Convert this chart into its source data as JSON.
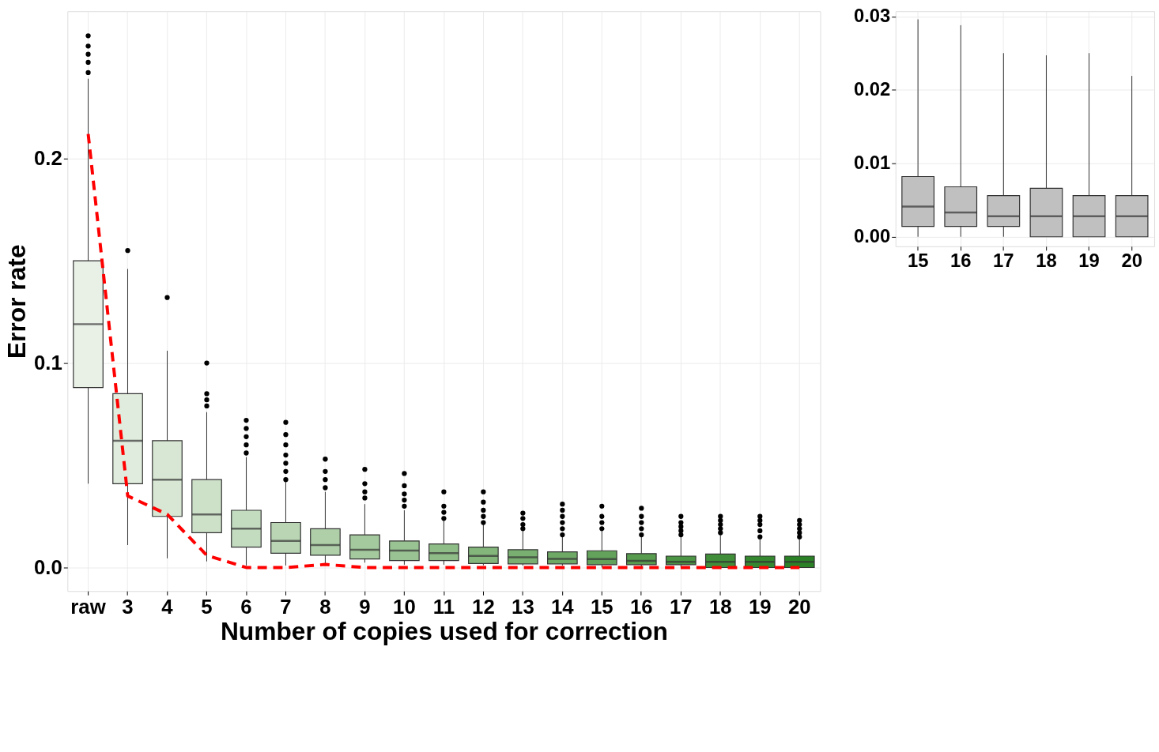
{
  "chart_data": [
    {
      "type": "box",
      "xlabel": "Number of copies used for correction",
      "ylabel": "Error rate",
      "categories": [
        "raw",
        "3",
        "4",
        "5",
        "6",
        "7",
        "8",
        "9",
        "10",
        "11",
        "12",
        "13",
        "14",
        "15",
        "16",
        "17",
        "18",
        "19",
        "20"
      ],
      "colors": [
        "#e9f1e7",
        "#e0ecdd",
        "#d7e7d3",
        "#cde1c9",
        "#c3dbbf",
        "#b9d5b4",
        "#afcfa9",
        "#a4c99e",
        "#9ac393",
        "#8fbd88",
        "#84b67c",
        "#79b071",
        "#6ea966",
        "#62a25a",
        "#579c4f",
        "#4b9544",
        "#408e39",
        "#35882f",
        "#2b8226"
      ],
      "boxes": [
        {
          "low": 0.041,
          "q1": 0.088,
          "median": 0.119,
          "q3": 0.15,
          "high": 0.239,
          "outliers": [
            0.242,
            0.247,
            0.251,
            0.255,
            0.26
          ]
        },
        {
          "low": 0.011,
          "q1": 0.041,
          "median": 0.062,
          "q3": 0.085,
          "high": 0.146,
          "outliers": [
            0.155
          ]
        },
        {
          "low": 0.0045,
          "q1": 0.025,
          "median": 0.043,
          "q3": 0.062,
          "high": 0.106,
          "outliers": [
            0.132
          ]
        },
        {
          "low": 0.003,
          "q1": 0.017,
          "median": 0.026,
          "q3": 0.043,
          "high": 0.076,
          "outliers": [
            0.079,
            0.082,
            0.085,
            0.1
          ]
        },
        {
          "low": 0.001,
          "q1": 0.01,
          "median": 0.019,
          "q3": 0.028,
          "high": 0.054,
          "outliers": [
            0.056,
            0.06,
            0.064,
            0.068,
            0.072
          ]
        },
        {
          "low": 0.001,
          "q1": 0.007,
          "median": 0.013,
          "q3": 0.022,
          "high": 0.042,
          "outliers": [
            0.043,
            0.047,
            0.051,
            0.055,
            0.06,
            0.065,
            0.071
          ]
        },
        {
          "low": 0.001,
          "q1": 0.006,
          "median": 0.011,
          "q3": 0.019,
          "high": 0.037,
          "outliers": [
            0.039,
            0.043,
            0.047,
            0.053
          ]
        },
        {
          "low": 0.0024,
          "q1": 0.0042,
          "median": 0.0087,
          "q3": 0.016,
          "high": 0.031,
          "outliers": [
            0.034,
            0.037,
            0.041,
            0.048
          ]
        },
        {
          "low": 0.0014,
          "q1": 0.0034,
          "median": 0.0083,
          "q3": 0.013,
          "high": 0.028,
          "outliers": [
            0.03,
            0.033,
            0.036,
            0.04,
            0.046
          ]
        },
        {
          "low": 0.0014,
          "q1": 0.0034,
          "median": 0.007,
          "q3": 0.0115,
          "high": 0.023,
          "outliers": [
            0.024,
            0.027,
            0.03,
            0.037
          ]
        },
        {
          "low": 0.0011,
          "q1": 0.002,
          "median": 0.0057,
          "q3": 0.01,
          "high": 0.021,
          "outliers": [
            0.022,
            0.025,
            0.028,
            0.032,
            0.037
          ]
        },
        {
          "low": 0.001,
          "q1": 0.0018,
          "median": 0.005,
          "q3": 0.0087,
          "high": 0.0178,
          "outliers": [
            0.019,
            0.021,
            0.024,
            0.0266
          ]
        },
        {
          "low": 0.001,
          "q1": 0.0018,
          "median": 0.0042,
          "q3": 0.0077,
          "high": 0.015,
          "outliers": [
            0.016,
            0.019,
            0.022,
            0.025,
            0.028,
            0.031
          ]
        },
        {
          "low": 0.0,
          "q1": 0.0014,
          "median": 0.0041,
          "q3": 0.0082,
          "high": 0.0178,
          "outliers": [
            0.019,
            0.022,
            0.025,
            0.03
          ]
        },
        {
          "low": 0.0,
          "q1": 0.0014,
          "median": 0.0033,
          "q3": 0.0068,
          "high": 0.015,
          "outliers": [
            0.016,
            0.019,
            0.022,
            0.025,
            0.029
          ]
        },
        {
          "low": 0.0,
          "q1": 0.0014,
          "median": 0.0028,
          "q3": 0.0056,
          "high": 0.015,
          "outliers": [
            0.016,
            0.018,
            0.02,
            0.022,
            0.025
          ]
        },
        {
          "low": 0.0,
          "q1": 0.0,
          "median": 0.0028,
          "q3": 0.0066,
          "high": 0.016,
          "outliers": [
            0.017,
            0.019,
            0.021,
            0.023,
            0.025
          ]
        },
        {
          "low": 0.0,
          "q1": 0.0,
          "median": 0.0028,
          "q3": 0.0056,
          "high": 0.014,
          "outliers": [
            0.015,
            0.018,
            0.021,
            0.023,
            0.025
          ]
        },
        {
          "low": 0.0,
          "q1": 0.0,
          "median": 0.0028,
          "q3": 0.0056,
          "high": 0.014,
          "outliers": [
            0.015,
            0.017,
            0.019,
            0.021,
            0.023
          ]
        }
      ],
      "series": [
        {
          "type": "line",
          "color": "#ff0000",
          "line_style": "dashed",
          "values": [
            0.212,
            0.035,
            0.026,
            0.006,
            0.0,
            0.0,
            0.0015,
            0.0,
            0.0,
            0.0,
            0.0,
            0.0,
            0.0,
            0.0,
            0.0,
            0.0,
            0.0,
            0.0,
            0.0
          ]
        }
      ],
      "ylim": [
        -0.0115,
        0.272
      ],
      "yticks": [
        {
          "value": 0,
          "label": "0.0"
        },
        0.1,
        0.2
      ],
      "grid": true
    },
    {
      "type": "box",
      "categories": [
        "15",
        "16",
        "17",
        "18",
        "19",
        "20"
      ],
      "colors": [
        "#c0c0c0",
        "#c0c0c0",
        "#c0c0c0",
        "#c0c0c0",
        "#c0c0c0",
        "#c0c0c0"
      ],
      "boxes": [
        {
          "low": 0.0,
          "q1": 0.0014,
          "median": 0.0041,
          "q3": 0.0082,
          "high": 0.0296
        },
        {
          "low": 0.0,
          "q1": 0.0014,
          "median": 0.0033,
          "q3": 0.0068,
          "high": 0.0288
        },
        {
          "low": 0.0,
          "q1": 0.0014,
          "median": 0.0028,
          "q3": 0.0056,
          "high": 0.025
        },
        {
          "low": 0.0,
          "q1": 0.0,
          "median": 0.0028,
          "q3": 0.0066,
          "high": 0.0247
        },
        {
          "low": 0.0,
          "q1": 0.0,
          "median": 0.0028,
          "q3": 0.0056,
          "high": 0.025
        },
        {
          "low": 0.0,
          "q1": 0.0,
          "median": 0.0028,
          "q3": 0.0056,
          "high": 0.0219
        }
      ],
      "ylim": [
        -0.0013,
        0.0307
      ],
      "yticks": [
        {
          "value": 0,
          "label": "0.00"
        },
        {
          "value": 0.01,
          "label": "0.01"
        },
        {
          "value": 0.02,
          "label": "0.02"
        },
        {
          "value": 0.03,
          "label": "0.03"
        }
      ],
      "grid": true
    }
  ]
}
